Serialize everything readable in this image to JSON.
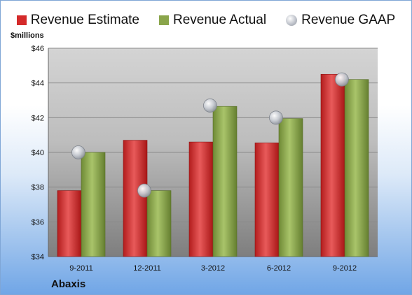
{
  "chart_data": {
    "type": "bar",
    "categories": [
      "9-2011",
      "12-2011",
      "3-2012",
      "6-2012",
      "9-2012"
    ],
    "series": [
      {
        "name": "Revenue Estimate",
        "values": [
          37.8,
          40.7,
          40.6,
          40.55,
          44.5
        ],
        "color": "#d42a2a"
      },
      {
        "name": "Revenue Actual",
        "values": [
          40.0,
          37.8,
          42.65,
          41.95,
          44.2
        ],
        "color": "#8aa54b"
      }
    ],
    "markers": {
      "name": "Revenue GAAP",
      "values": [
        40.0,
        37.8,
        42.7,
        42.0,
        44.2
      ],
      "color": "#c0c4cc"
    },
    "ylabel": "$millions",
    "ylim": [
      34,
      46
    ],
    "yticks": [
      "$34",
      "$36",
      "$38",
      "$40",
      "$42",
      "$44",
      "$46"
    ],
    "grid": true,
    "legend": "top"
  },
  "company_label": "Abaxis"
}
